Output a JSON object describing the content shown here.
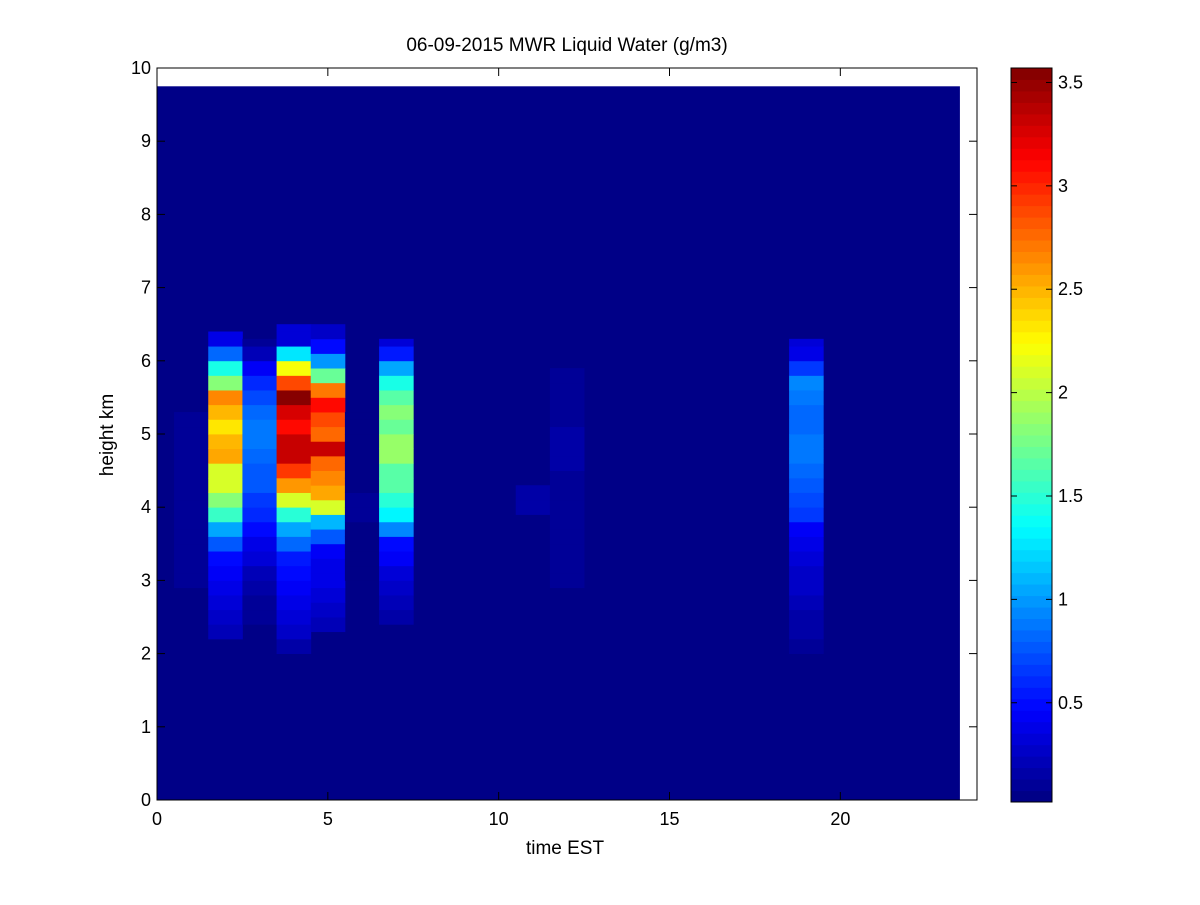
{
  "chart_data": {
    "type": "heatmap",
    "title": "06-09-2015 MWR Liquid Water (g/m3)",
    "xlabel": "time EST",
    "ylabel": "height km",
    "xlim": [
      0,
      24
    ],
    "ylim": [
      0,
      10
    ],
    "x_ticks": [
      0,
      5,
      10,
      15,
      20
    ],
    "y_ticks": [
      0,
      1,
      2,
      3,
      4,
      5,
      6,
      7,
      8,
      9,
      10
    ],
    "colormap": "jet",
    "colorbar": {
      "label": "",
      "range": [
        0.02,
        3.57
      ],
      "ticks": [
        0.5,
        1,
        1.5,
        2,
        2.5,
        3,
        3.5
      ],
      "tick_labels": [
        "0.5",
        "1",
        "1.5",
        "2",
        "2.5",
        "3",
        "3.5"
      ]
    },
    "background_value": 0.02,
    "data_extent": {
      "x": [
        0,
        23.5
      ],
      "y": [
        0,
        9.75
      ]
    },
    "cell_height_km": 0.2,
    "columns": [
      {
        "x0": 0.5,
        "x1": 1.5,
        "y0": 2.9,
        "y1": 5.3,
        "profile": [
          [
            3.0,
            0.12
          ],
          [
            4.0,
            0.1
          ],
          [
            5.0,
            0.08
          ]
        ]
      },
      {
        "x0": 1.5,
        "x1": 2.5,
        "y0": 2.2,
        "y1": 6.4,
        "profile": [
          [
            2.3,
            0.22
          ],
          [
            2.8,
            0.35
          ],
          [
            3.3,
            0.5
          ],
          [
            3.7,
            1.05
          ],
          [
            3.9,
            1.55
          ],
          [
            4.3,
            2.1
          ],
          [
            4.5,
            2.1
          ],
          [
            4.8,
            2.75
          ],
          [
            5.0,
            2.25
          ],
          [
            5.3,
            2.5
          ],
          [
            5.5,
            2.65
          ],
          [
            5.7,
            1.85
          ],
          [
            6.0,
            1.2
          ],
          [
            6.2,
            0.4
          ]
        ]
      },
      {
        "x0": 2.5,
        "x1": 3.5,
        "y0": 2.4,
        "y1": 6.3,
        "profile": [
          [
            2.5,
            0.08
          ],
          [
            3.2,
            0.25
          ],
          [
            3.8,
            0.55
          ],
          [
            4.3,
            0.75
          ],
          [
            5.0,
            0.9
          ],
          [
            5.6,
            0.7
          ],
          [
            6.0,
            0.35
          ],
          [
            6.2,
            0.12
          ]
        ]
      },
      {
        "x0": 3.5,
        "x1": 4.5,
        "y0": 2.0,
        "y1": 6.5,
        "profile": [
          [
            2.1,
            0.18
          ],
          [
            2.7,
            0.4
          ],
          [
            3.3,
            0.55
          ],
          [
            3.8,
            1.2
          ],
          [
            4.0,
            1.75
          ],
          [
            4.2,
            2.45
          ],
          [
            4.6,
            3.1
          ],
          [
            4.8,
            3.55
          ],
          [
            5.0,
            3.05
          ],
          [
            5.3,
            3.25
          ],
          [
            5.5,
            3.55
          ],
          [
            5.7,
            2.9
          ],
          [
            5.9,
            2.2
          ],
          [
            6.1,
            1.25
          ],
          [
            6.3,
            0.35
          ]
        ]
      },
      {
        "x0": 4.5,
        "x1": 5.5,
        "y0": 2.3,
        "y1": 6.5,
        "profile": [
          [
            2.4,
            0.2
          ],
          [
            2.9,
            0.33
          ],
          [
            3.4,
            0.45
          ],
          [
            3.8,
            1.1
          ],
          [
            4.0,
            2.1
          ],
          [
            4.2,
            2.55
          ],
          [
            4.6,
            2.75
          ],
          [
            4.8,
            3.3
          ],
          [
            5.0,
            2.75
          ],
          [
            5.3,
            2.95
          ],
          [
            5.5,
            3.2
          ],
          [
            5.7,
            2.2
          ],
          [
            5.9,
            1.25
          ],
          [
            6.1,
            0.7
          ],
          [
            6.3,
            0.25
          ]
        ]
      },
      {
        "x0": 5.5,
        "x1": 6.5,
        "y0": 3.0,
        "y1": 5.3,
        "profile": [
          [
            3.0,
            0.06
          ],
          [
            4.0,
            0.08
          ],
          [
            5.2,
            0.06
          ]
        ]
      },
      {
        "x0": 6.5,
        "x1": 7.5,
        "y0": 2.4,
        "y1": 6.3,
        "profile": [
          [
            2.5,
            0.15
          ],
          [
            3.0,
            0.3
          ],
          [
            3.5,
            0.5
          ],
          [
            3.7,
            0.95
          ],
          [
            3.9,
            1.3
          ],
          [
            4.3,
            1.65
          ],
          [
            4.6,
            1.7
          ],
          [
            4.8,
            2.1
          ],
          [
            5.0,
            1.65
          ],
          [
            5.3,
            1.8
          ],
          [
            5.6,
            1.55
          ],
          [
            5.8,
            1.3
          ],
          [
            6.0,
            0.75
          ],
          [
            6.2,
            0.3
          ]
        ]
      },
      {
        "x0": 10.5,
        "x1": 11.5,
        "y0": 3.9,
        "y1": 4.3,
        "profile": [
          [
            4.1,
            0.14
          ]
        ]
      },
      {
        "x0": 11.5,
        "x1": 12.5,
        "y0": 2.9,
        "y1": 5.9,
        "profile": [
          [
            3.0,
            0.1
          ],
          [
            4.0,
            0.12
          ],
          [
            5.0,
            0.14
          ],
          [
            5.8,
            0.09
          ]
        ]
      },
      {
        "x0": 18.5,
        "x1": 19.5,
        "y0": 2.0,
        "y1": 6.3,
        "profile": [
          [
            2.1,
            0.1
          ],
          [
            2.7,
            0.22
          ],
          [
            3.3,
            0.3
          ],
          [
            3.7,
            0.45
          ],
          [
            3.9,
            0.65
          ],
          [
            4.3,
            0.78
          ],
          [
            4.6,
            0.85
          ],
          [
            4.8,
            0.95
          ],
          [
            5.0,
            0.78
          ],
          [
            5.3,
            0.85
          ],
          [
            5.7,
            0.95
          ],
          [
            6.0,
            0.5
          ],
          [
            6.2,
            0.3
          ]
        ]
      }
    ]
  }
}
